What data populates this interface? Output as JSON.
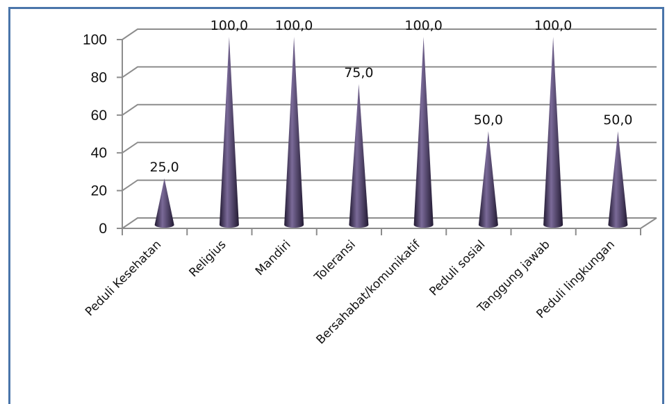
{
  "chart_data": {
    "type": "bar",
    "style": "3d-cone",
    "categories": [
      "Peduli Kesehatan",
      "Religius",
      "Mandiri",
      "Toleransi",
      "Bersahabat/komunikatif",
      "Peduli sosial",
      "Tanggung jawab",
      "Peduli lingkungan"
    ],
    "values": [
      25.0,
      100.0,
      100.0,
      75.0,
      100.0,
      50.0,
      100.0,
      50.0
    ],
    "value_labels": [
      "25,0",
      "100,0",
      "100,0",
      "75,0",
      "100,0",
      "50,0",
      "100,0",
      "50,0"
    ],
    "yticks": [
      "0",
      "20",
      "40",
      "60",
      "80",
      "100"
    ],
    "ylim": [
      0,
      100
    ],
    "grid": true,
    "legend": "none",
    "colors": {
      "cone": "#3f3157",
      "cone_light": "#7a6a98",
      "cone_dark": "#221a32",
      "grid": "#8c8c8c",
      "frame": "#4a75aa"
    }
  }
}
